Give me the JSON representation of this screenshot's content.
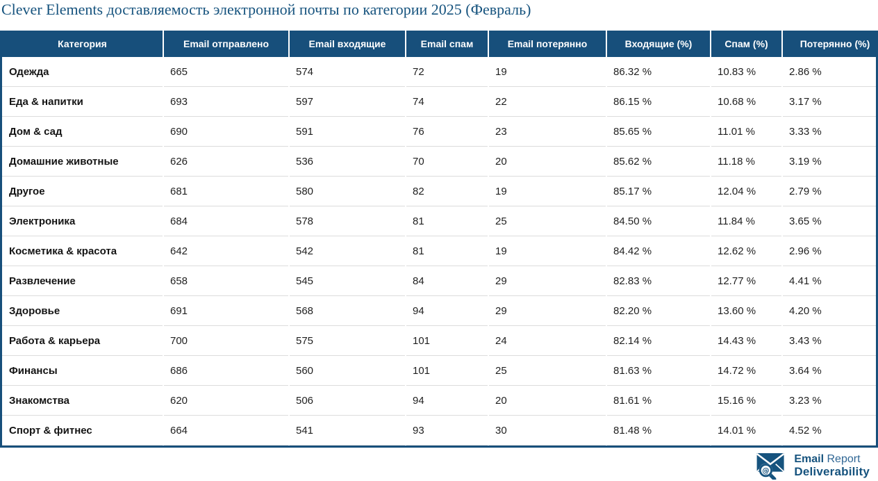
{
  "title": "Clever Elements доставляемость электронной почты по категории 2025 (Февраль)",
  "table": {
    "columns": [
      "Категория",
      "Email отправлено",
      "Email входящие",
      "Email спам",
      "Email потерянно",
      "Входящие (%)",
      "Спам (%)",
      "Потерянно (%)"
    ],
    "rows": [
      [
        "Одежда",
        "665",
        "574",
        "72",
        "19",
        "86.32 %",
        "10.83 %",
        "2.86 %"
      ],
      [
        "Еда & напитки",
        "693",
        "597",
        "74",
        "22",
        "86.15 %",
        "10.68 %",
        "3.17 %"
      ],
      [
        "Дом & сад",
        "690",
        "591",
        "76",
        "23",
        "85.65 %",
        "11.01 %",
        "3.33 %"
      ],
      [
        "Домашние животные",
        "626",
        "536",
        "70",
        "20",
        "85.62 %",
        "11.18 %",
        "3.19 %"
      ],
      [
        "Другое",
        "681",
        "580",
        "82",
        "19",
        "85.17 %",
        "12.04 %",
        "2.79 %"
      ],
      [
        "Электроника",
        "684",
        "578",
        "81",
        "25",
        "84.50 %",
        "11.84 %",
        "3.65 %"
      ],
      [
        "Косметика & красота",
        "642",
        "542",
        "81",
        "19",
        "84.42 %",
        "12.62 %",
        "2.96 %"
      ],
      [
        "Развлечение",
        "658",
        "545",
        "84",
        "29",
        "82.83 %",
        "12.77 %",
        "4.41 %"
      ],
      [
        "Здоровье",
        "691",
        "568",
        "94",
        "29",
        "82.20 %",
        "13.60 %",
        "4.20 %"
      ],
      [
        "Работа & карьера",
        "700",
        "575",
        "101",
        "24",
        "82.14 %",
        "14.43 %",
        "3.43 %"
      ],
      [
        "Финансы",
        "686",
        "560",
        "101",
        "25",
        "81.63 %",
        "14.72 %",
        "3.64 %"
      ],
      [
        "Знакомства",
        "620",
        "506",
        "94",
        "20",
        "81.61 %",
        "15.16 %",
        "3.23 %"
      ],
      [
        "Спорт & фитнес",
        "664",
        "541",
        "93",
        "30",
        "81.48 %",
        "14.01 %",
        "4.52 %"
      ]
    ]
  },
  "footer": {
    "logo": {
      "line1_bold": "Email",
      "line1_regular": " Report",
      "line2": "Deliverability",
      "icon": "envelope-magnifier-at-icon",
      "at_glyph": "@"
    }
  },
  "colors": {
    "header_bg": "#174f7b",
    "accent_blue": "#16537e",
    "row_border": "#dcdcdc",
    "body_text": "#1f1f1f"
  }
}
